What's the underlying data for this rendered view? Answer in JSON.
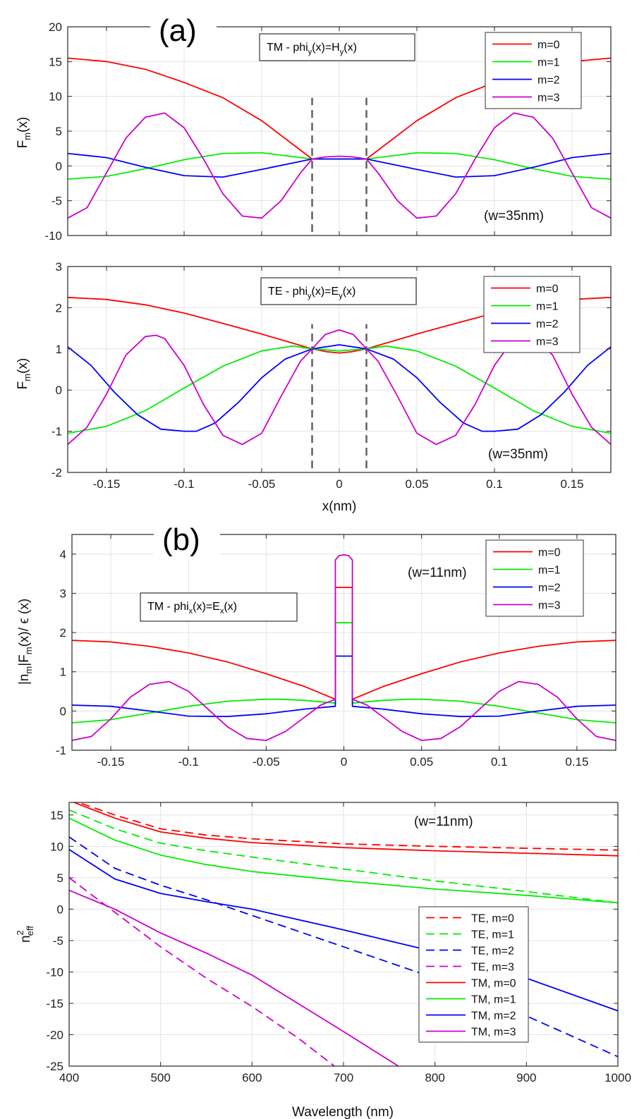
{
  "colors": {
    "m0": "#ff0000",
    "m1": "#00ee00",
    "m2": "#0000ff",
    "m3": "#cc00cc",
    "grid": "#e3e3e3",
    "axis": "#262626",
    "marker": "#606060"
  },
  "chart_data": [
    {
      "type": "line",
      "panel_label": "(a)",
      "box_text": {
        "main": "TM  -  phi",
        "sub1": "y",
        "mid": "(x)=H",
        "sub2": "y",
        "tail": "(x)"
      },
      "annotation": "(w=35nm)",
      "ylabel": {
        "main": "F",
        "sub": "m",
        "tail": "(x)"
      },
      "xlabel": "",
      "xlim": [
        -0.175,
        0.175
      ],
      "ylim": [
        -10,
        20
      ],
      "xticks": [
        "-0.15",
        "-0.1",
        "-0.05",
        "0",
        "0.05",
        "0.1",
        "0.15"
      ],
      "show_xtick_labels": false,
      "yticks": [
        "-10",
        "-5",
        "0",
        "5",
        "10",
        "15",
        "20"
      ],
      "core_edges": [
        -0.0175,
        0.0175
      ],
      "core_edge_yrange": [
        -9.5,
        9.8
      ],
      "legend": [
        "m=0",
        "m=1",
        "m=2",
        "m=3"
      ],
      "series": [
        {
          "name": "m=0",
          "x": [
            -0.175,
            -0.15,
            -0.125,
            -0.1,
            -0.075,
            -0.05,
            -0.0175,
            -0.01,
            0,
            0.01,
            0.0175,
            0.05,
            0.075,
            0.1,
            0.125,
            0.15,
            0.175
          ],
          "y": [
            15.5,
            15.0,
            13.9,
            12.0,
            9.8,
            6.5,
            1.0,
            1.0,
            1.0,
            1.0,
            1.0,
            6.5,
            9.8,
            12.0,
            13.9,
            15.0,
            15.5
          ]
        },
        {
          "name": "m=1",
          "x": [
            -0.175,
            -0.15,
            -0.125,
            -0.1,
            -0.075,
            -0.05,
            -0.0175,
            0,
            0.0175,
            0.05,
            0.075,
            0.1,
            0.125,
            0.15,
            0.175
          ],
          "y": [
            -1.9,
            -1.5,
            -0.4,
            0.9,
            1.8,
            1.9,
            1.0,
            1.0,
            1.0,
            1.9,
            1.8,
            0.9,
            -0.4,
            -1.5,
            -1.9
          ]
        },
        {
          "name": "m=2",
          "x": [
            -0.175,
            -0.15,
            -0.125,
            -0.1,
            -0.075,
            -0.05,
            -0.0175,
            0,
            0.0175,
            0.05,
            0.075,
            0.1,
            0.125,
            0.15,
            0.175
          ],
          "y": [
            1.8,
            1.2,
            -0.2,
            -1.4,
            -1.6,
            -0.5,
            1.0,
            1.0,
            1.0,
            -0.5,
            -1.6,
            -1.4,
            -0.2,
            1.2,
            1.8
          ]
        },
        {
          "name": "m=3",
          "x": [
            -0.175,
            -0.1625,
            -0.15,
            -0.1375,
            -0.125,
            -0.1125,
            -0.1,
            -0.0875,
            -0.075,
            -0.0625,
            -0.05,
            -0.0375,
            -0.025,
            -0.0175,
            -0.0088,
            0,
            0.0088,
            0.0175,
            0.025,
            0.0375,
            0.05,
            0.0625,
            0.075,
            0.0875,
            0.1,
            0.1125,
            0.125,
            0.1375,
            0.15,
            0.1625,
            0.175
          ],
          "y": [
            -7.5,
            -6.0,
            -1.0,
            4.0,
            7.0,
            7.6,
            5.5,
            1.0,
            -4.0,
            -7.2,
            -7.5,
            -5.0,
            -1.0,
            1.0,
            1.3,
            1.4,
            1.3,
            1.0,
            -1.0,
            -5.0,
            -7.5,
            -7.2,
            -4.0,
            1.0,
            5.5,
            7.6,
            7.0,
            4.0,
            -1.0,
            -6.0,
            -7.5
          ]
        }
      ]
    },
    {
      "type": "line",
      "panel_label": "",
      "box_text": {
        "main": "TE  -  phi",
        "sub1": "y",
        "mid": "(x)=E",
        "sub2": "y",
        "tail": "(x)"
      },
      "annotation": "(w=35nm)",
      "ylabel": {
        "main": "F",
        "sub": "m",
        "tail": "(x)"
      },
      "xlabel": "x(nm)",
      "xlim": [
        -0.175,
        0.175
      ],
      "ylim": [
        -2,
        3
      ],
      "xticks": [
        "-0.15",
        "-0.1",
        "-0.05",
        "0",
        "0.05",
        "0.1",
        "0.15"
      ],
      "show_xtick_labels": true,
      "yticks": [
        "-2",
        "-1",
        "0",
        "1",
        "2",
        "3"
      ],
      "core_edges": [
        -0.0175,
        0.0175
      ],
      "core_edge_yrange": [
        -1.9,
        1.6
      ],
      "legend": [
        "m=0",
        "m=1",
        "m=2",
        "m=3"
      ],
      "series": [
        {
          "name": "m=0",
          "x": [
            -0.175,
            -0.15,
            -0.125,
            -0.1,
            -0.075,
            -0.05,
            -0.0175,
            -0.008,
            0,
            0.008,
            0.0175,
            0.05,
            0.075,
            0.1,
            0.125,
            0.15,
            0.175
          ],
          "y": [
            2.25,
            2.2,
            2.07,
            1.87,
            1.62,
            1.36,
            1.0,
            0.93,
            0.9,
            0.93,
            1.0,
            1.36,
            1.62,
            1.87,
            2.07,
            2.2,
            2.25
          ]
        },
        {
          "name": "m=1",
          "x": [
            -0.175,
            -0.15,
            -0.125,
            -0.1,
            -0.075,
            -0.05,
            -0.03,
            -0.0175,
            0,
            0.0175,
            0.03,
            0.05,
            0.075,
            0.1,
            0.125,
            0.15,
            0.175
          ],
          "y": [
            -1.05,
            -0.88,
            -0.5,
            0.05,
            0.58,
            0.95,
            1.07,
            1.0,
            0.95,
            1.0,
            1.07,
            0.95,
            0.58,
            0.05,
            -0.5,
            -0.88,
            -1.05
          ]
        },
        {
          "name": "m=2",
          "x": [
            -0.175,
            -0.16,
            -0.145,
            -0.13,
            -0.115,
            -0.1,
            -0.092,
            -0.08,
            -0.065,
            -0.05,
            -0.035,
            -0.0175,
            0,
            0.0175,
            0.035,
            0.05,
            0.065,
            0.08,
            0.092,
            0.1,
            0.115,
            0.13,
            0.145,
            0.16,
            0.175
          ],
          "y": [
            1.05,
            0.6,
            -0.05,
            -0.6,
            -0.95,
            -1.0,
            -1.0,
            -0.8,
            -0.3,
            0.3,
            0.75,
            1.0,
            1.1,
            1.0,
            0.75,
            0.3,
            -0.3,
            -0.8,
            -1.0,
            -1.0,
            -0.95,
            -0.6,
            -0.05,
            0.6,
            1.05
          ]
        },
        {
          "name": "m=3",
          "x": [
            -0.175,
            -0.1625,
            -0.15,
            -0.1375,
            -0.125,
            -0.118,
            -0.1125,
            -0.1,
            -0.0875,
            -0.075,
            -0.0625,
            -0.05,
            -0.0375,
            -0.025,
            -0.0175,
            -0.009,
            0,
            0.009,
            0.0175,
            0.025,
            0.0375,
            0.05,
            0.0625,
            0.075,
            0.0875,
            0.1,
            0.1125,
            0.118,
            0.125,
            0.1375,
            0.15,
            0.1625,
            0.175
          ],
          "y": [
            -1.32,
            -0.9,
            -0.1,
            0.85,
            1.3,
            1.33,
            1.25,
            0.6,
            -0.35,
            -1.1,
            -1.32,
            -1.05,
            -0.15,
            0.7,
            1.0,
            1.35,
            1.46,
            1.35,
            1.0,
            0.7,
            -0.15,
            -1.05,
            -1.32,
            -1.1,
            -0.35,
            0.6,
            1.25,
            1.33,
            1.3,
            0.85,
            -0.1,
            -0.9,
            -1.32
          ]
        }
      ]
    },
    {
      "type": "line",
      "panel_label": "(b)",
      "box_text": {
        "main": "TM  -  phi",
        "sub1": "x",
        "mid": "(x)=E",
        "sub2": "x",
        "tail": "(x)"
      },
      "annotation": "(w=11nm)",
      "ylabel": {
        "main": "|n",
        "sub": "m",
        "mid": "|F",
        "sub2": "m",
        "tail": "(x)/ ϵ (x)"
      },
      "xlabel": "",
      "xlim": [
        -0.175,
        0.175
      ],
      "ylim": [
        -1,
        4.5
      ],
      "xticks": [
        "-0.15",
        "-0.1",
        "-0.05",
        "0",
        "0.05",
        "0.1",
        "0.15"
      ],
      "show_xtick_labels": true,
      "yticks": [
        "-1",
        "0",
        "1",
        "2",
        "3",
        "4"
      ],
      "core_edges": [],
      "legend": [
        "m=0",
        "m=1",
        "m=2",
        "m=3"
      ],
      "series": [
        {
          "name": "m=0",
          "x": [
            -0.175,
            -0.15,
            -0.125,
            -0.1,
            -0.075,
            -0.05,
            -0.025,
            -0.0055,
            -0.0055,
            0.0055,
            0.0055,
            0.025,
            0.05,
            0.075,
            0.1,
            0.125,
            0.15,
            0.175
          ],
          "y": [
            1.8,
            1.76,
            1.65,
            1.48,
            1.25,
            0.95,
            0.62,
            0.3,
            3.15,
            3.15,
            0.3,
            0.62,
            0.95,
            1.25,
            1.48,
            1.65,
            1.76,
            1.8
          ]
        },
        {
          "name": "m=1",
          "x": [
            -0.175,
            -0.15,
            -0.125,
            -0.1,
            -0.075,
            -0.05,
            -0.04,
            -0.025,
            -0.0055,
            -0.0055,
            0.0055,
            0.0055,
            0.025,
            0.04,
            0.05,
            0.075,
            0.1,
            0.125,
            0.15,
            0.175
          ],
          "y": [
            -0.3,
            -0.22,
            -0.05,
            0.12,
            0.25,
            0.3,
            0.3,
            0.27,
            0.2,
            2.25,
            2.25,
            0.2,
            0.27,
            0.3,
            0.3,
            0.25,
            0.12,
            -0.05,
            -0.22,
            -0.3
          ]
        },
        {
          "name": "m=2",
          "x": [
            -0.175,
            -0.15,
            -0.125,
            -0.1,
            -0.075,
            -0.05,
            -0.025,
            -0.0055,
            -0.0055,
            0.0055,
            0.0055,
            0.025,
            0.05,
            0.075,
            0.1,
            0.125,
            0.15,
            0.175
          ],
          "y": [
            0.15,
            0.12,
            0.0,
            -0.13,
            -0.14,
            -0.07,
            0.05,
            0.12,
            1.4,
            1.4,
            0.12,
            0.05,
            -0.07,
            -0.14,
            -0.13,
            0.0,
            0.12,
            0.15
          ]
        },
        {
          "name": "m=3",
          "x": [
            -0.175,
            -0.1625,
            -0.15,
            -0.1375,
            -0.125,
            -0.1125,
            -0.1,
            -0.0875,
            -0.075,
            -0.0625,
            -0.05,
            -0.0375,
            -0.025,
            -0.015,
            -0.0055,
            -0.0055,
            -0.003,
            0,
            0.003,
            0.0055,
            0.0055,
            0.015,
            0.025,
            0.0375,
            0.05,
            0.0625,
            0.075,
            0.0875,
            0.1,
            0.1125,
            0.125,
            0.1375,
            0.15,
            0.1625,
            0.175
          ],
          "y": [
            -0.75,
            -0.65,
            -0.2,
            0.35,
            0.68,
            0.75,
            0.5,
            0.05,
            -0.4,
            -0.7,
            -0.75,
            -0.52,
            -0.15,
            0.15,
            0.3,
            3.85,
            3.96,
            3.98,
            3.96,
            3.85,
            0.3,
            0.15,
            -0.15,
            -0.52,
            -0.75,
            -0.7,
            -0.4,
            0.05,
            0.5,
            0.75,
            0.68,
            0.35,
            -0.2,
            -0.65,
            -0.75
          ]
        }
      ]
    },
    {
      "type": "line",
      "panel_label": "",
      "box_text": null,
      "annotation": "(w=11nm)",
      "ylabel": {
        "main": "n",
        "sup": "2",
        "sub": "eff"
      },
      "xlabel": "Wavelength (nm)",
      "xlim": [
        400,
        1000
      ],
      "ylim": [
        -25,
        17
      ],
      "xticks": [
        "400",
        "500",
        "600",
        "700",
        "800",
        "900",
        "1000"
      ],
      "show_xtick_labels": true,
      "yticks": [
        "-25",
        "-20",
        "-15",
        "-10",
        "-5",
        "0",
        "5",
        "10",
        "15"
      ],
      "core_edges": [],
      "legend": [
        "TE, m=0",
        "TE, m=1",
        "TE, m=2",
        "TE, m=3",
        "TM, m=0",
        "TM, m=1",
        "TM, m=2",
        "TM, m=3"
      ],
      "series": [
        {
          "name": "TE, m=0",
          "style": "dashed",
          "x": [
            400,
            450,
            500,
            550,
            600,
            700,
            800,
            900,
            1000
          ],
          "y": [
            17.5,
            15.0,
            12.8,
            11.8,
            11.2,
            10.4,
            10.0,
            9.7,
            9.4
          ]
        },
        {
          "name": "TE, m=1",
          "style": "dashed",
          "x": [
            400,
            450,
            500,
            550,
            600,
            700,
            800,
            900,
            1000
          ],
          "y": [
            15.8,
            12.8,
            10.5,
            9.3,
            8.3,
            6.4,
            4.5,
            2.8,
            1.0
          ]
        },
        {
          "name": "TE, m=2",
          "style": "dashed",
          "x": [
            400,
            450,
            500,
            550,
            600,
            700,
            800,
            900,
            1000
          ],
          "y": [
            11.5,
            6.5,
            3.8,
            1.5,
            -1.0,
            -6.0,
            -11.0,
            -17.0,
            -23.5
          ]
        },
        {
          "name": "TE, m=3",
          "style": "dashed",
          "x": [
            400,
            450,
            500,
            550,
            600,
            650,
            690
          ],
          "y": [
            5.0,
            -0.5,
            -6.0,
            -11.0,
            -15.5,
            -20.5,
            -25.0
          ]
        },
        {
          "name": "TM, m=0",
          "style": "solid",
          "x": [
            400,
            450,
            500,
            550,
            600,
            700,
            800,
            900,
            1000
          ],
          "y": [
            17.3,
            14.5,
            12.3,
            11.3,
            10.6,
            9.8,
            9.3,
            8.9,
            8.5
          ]
        },
        {
          "name": "TM, m=1",
          "style": "solid",
          "x": [
            400,
            450,
            500,
            550,
            600,
            700,
            800,
            900,
            1000
          ],
          "y": [
            14.5,
            11.0,
            8.6,
            7.1,
            6.0,
            4.5,
            3.2,
            2.2,
            1.0
          ]
        },
        {
          "name": "TM, m=2",
          "style": "solid",
          "x": [
            400,
            450,
            500,
            550,
            600,
            700,
            800,
            900,
            1000
          ],
          "y": [
            9.5,
            4.8,
            2.5,
            1.2,
            0.0,
            -3.3,
            -6.8,
            -11.0,
            -16.2
          ]
        },
        {
          "name": "TM, m=3",
          "style": "solid",
          "x": [
            400,
            450,
            500,
            550,
            600,
            650,
            700,
            760
          ],
          "y": [
            3.0,
            0.0,
            -3.8,
            -7.0,
            -10.5,
            -15.0,
            -19.5,
            -25.0
          ]
        }
      ]
    }
  ]
}
